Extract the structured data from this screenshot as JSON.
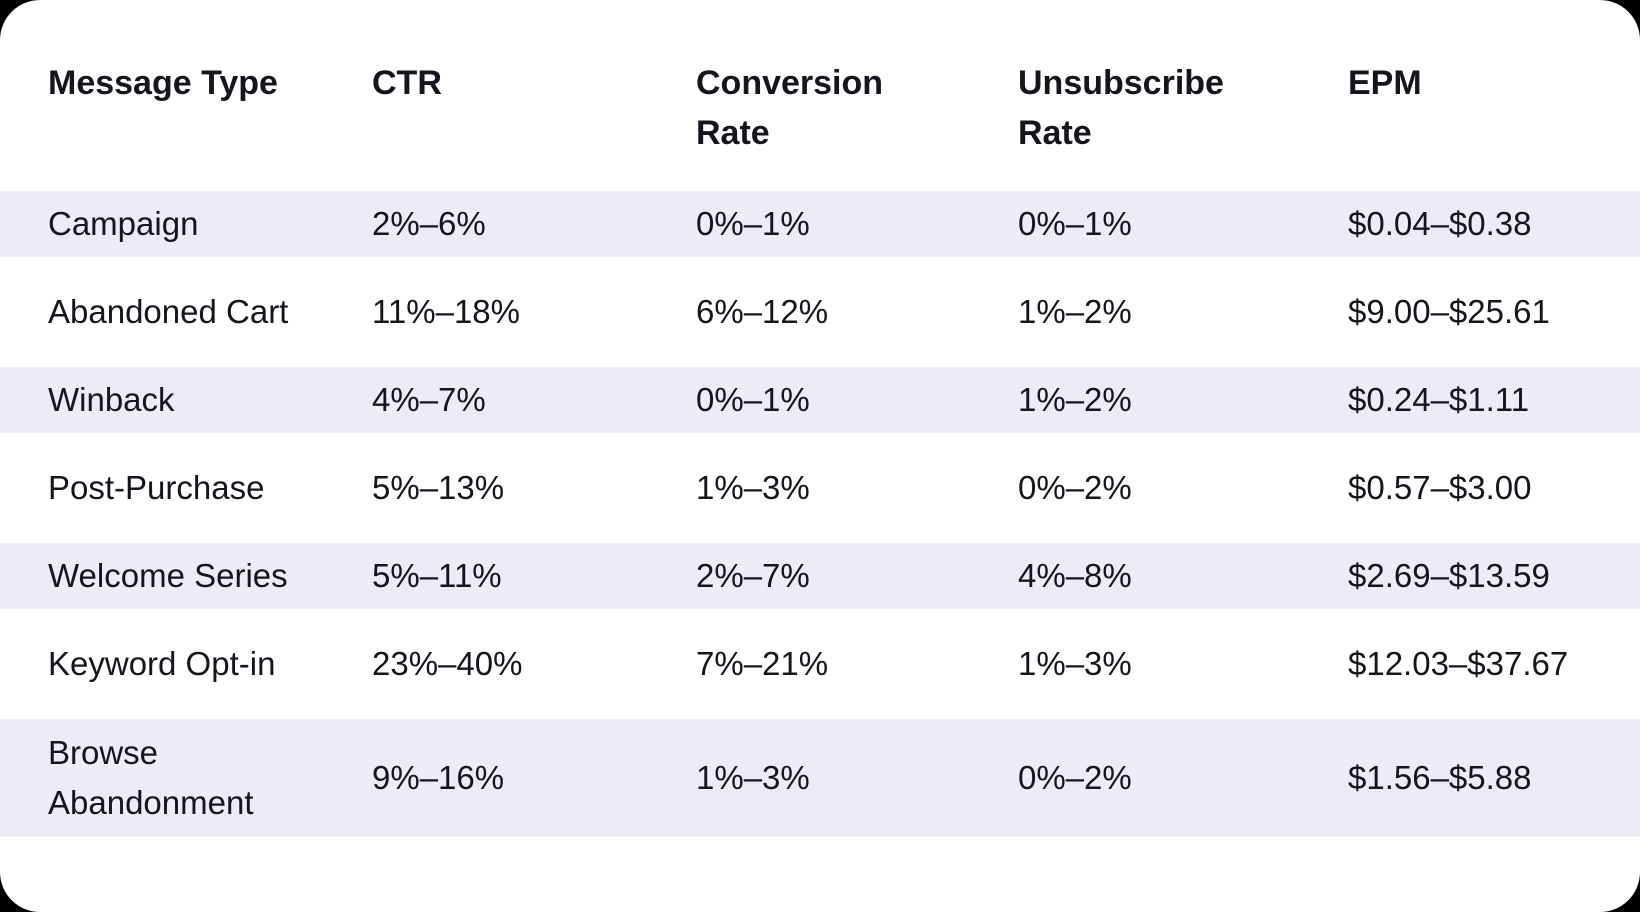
{
  "colors": {
    "page_background": "#000000",
    "card_background": "#FFFFFF",
    "stripe_row_background": "#ECEBF6",
    "text": "#16141C"
  },
  "chart_data": {
    "type": "table",
    "columns": [
      "Message Type",
      "CTR",
      "Conversion Rate",
      "Unsubscribe Rate",
      "EPM"
    ],
    "header_lines": [
      [
        "Message Type"
      ],
      [
        "CTR"
      ],
      [
        "Conversion",
        "Rate"
      ],
      [
        "Unsubscribe",
        "Rate"
      ],
      [
        "EPM"
      ]
    ],
    "rows": [
      [
        "Campaign",
        "2%–6%",
        "0%–1%",
        "0%–1%",
        "$0.04–$0.38"
      ],
      [
        "Abandoned Cart",
        "11%–18%",
        "6%–12%",
        "1%–2%",
        "$9.00–$25.61"
      ],
      [
        "Winback",
        "4%–7%",
        "0%–1%",
        "1%–2%",
        "$0.24–$1.11"
      ],
      [
        "Post-Purchase",
        "5%–13%",
        "1%–3%",
        "0%–2%",
        "$0.57–$3.00"
      ],
      [
        "Welcome Series",
        "5%–11%",
        "2%–7%",
        "4%–8%",
        "$2.69–$13.59"
      ],
      [
        "Keyword Opt-in",
        "23%–40%",
        "7%–21%",
        "1%–3%",
        "$12.03–$37.67"
      ],
      [
        "Browse Abandonment",
        "9%–16%",
        "1%–3%",
        "0%–2%",
        "$1.56–$5.88"
      ]
    ],
    "browse_label_lines": [
      "Browse",
      "Abandonment"
    ],
    "layout": {
      "striping": "rows 1,3,5,7 lavender; others white",
      "stripe_color": "#ECEBF6",
      "grid_lines": "none",
      "header_position": "top"
    }
  }
}
